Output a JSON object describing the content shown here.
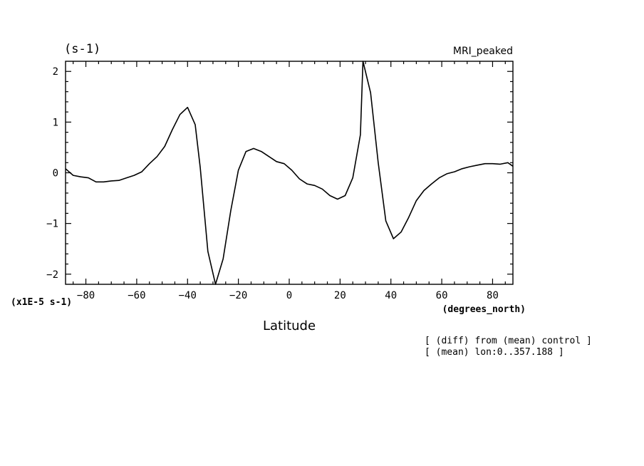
{
  "chart_data": {
    "type": "line",
    "unit_title": "(s-1)",
    "model_label": "MRI_peaked",
    "xlabel": "Latitude",
    "x_unit_label": "(degrees_north)",
    "y_scale_label": "(x1E-5 s-1)",
    "notes": [
      "[ (diff) from (mean) control ]",
      "[ (mean) lon:0..357.188 ]"
    ],
    "xlim": [
      -88,
      88
    ],
    "ylim": [
      -2.2,
      2.2
    ],
    "x_ticks": [
      -80,
      -60,
      -40,
      -20,
      0,
      20,
      40,
      60,
      80
    ],
    "y_ticks": [
      -2,
      -1,
      0,
      1,
      2
    ],
    "x_tick_labels": [
      "-80",
      "-60",
      "-40",
      "-20",
      "0",
      "20",
      "40",
      "60",
      "80"
    ],
    "y_tick_labels": [
      "-2",
      "-1",
      "0",
      "1",
      "2"
    ],
    "grid": false,
    "color": "#000000",
    "series": [
      {
        "x": [
          -88,
          -85,
          -82,
          -79,
          -76,
          -73,
          -70,
          -67,
          -64,
          -61,
          -58,
          -55,
          -52,
          -49,
          -46,
          -43,
          -40,
          -37,
          -35,
          -32,
          -29,
          -26,
          -23,
          -20,
          -17,
          -14,
          -11,
          -8,
          -5,
          -2,
          1,
          4,
          7,
          10,
          13,
          16,
          19,
          22,
          25,
          28,
          29,
          32,
          35,
          38,
          41,
          44,
          47,
          50,
          53,
          56,
          59,
          62,
          65,
          68,
          71,
          74,
          77,
          80,
          83,
          86,
          88
        ],
        "y": [
          0.08,
          -0.05,
          -0.08,
          -0.1,
          -0.18,
          -0.18,
          -0.16,
          -0.15,
          -0.1,
          -0.05,
          0.02,
          0.18,
          0.32,
          0.52,
          0.85,
          1.15,
          1.29,
          0.95,
          0.1,
          -1.55,
          -2.2,
          -1.7,
          -0.75,
          0.05,
          0.42,
          0.48,
          0.42,
          0.32,
          0.22,
          0.18,
          0.05,
          -0.12,
          -0.22,
          -0.25,
          -0.32,
          -0.45,
          -0.52,
          -0.45,
          -0.1,
          0.75,
          2.2,
          1.58,
          0.2,
          -0.95,
          -1.3,
          -1.17,
          -0.88,
          -0.55,
          -0.35,
          -0.22,
          -0.1,
          -0.02,
          0.02,
          0.08,
          0.12,
          0.15,
          0.18,
          0.18,
          0.17,
          0.2,
          0.13
        ]
      }
    ]
  }
}
